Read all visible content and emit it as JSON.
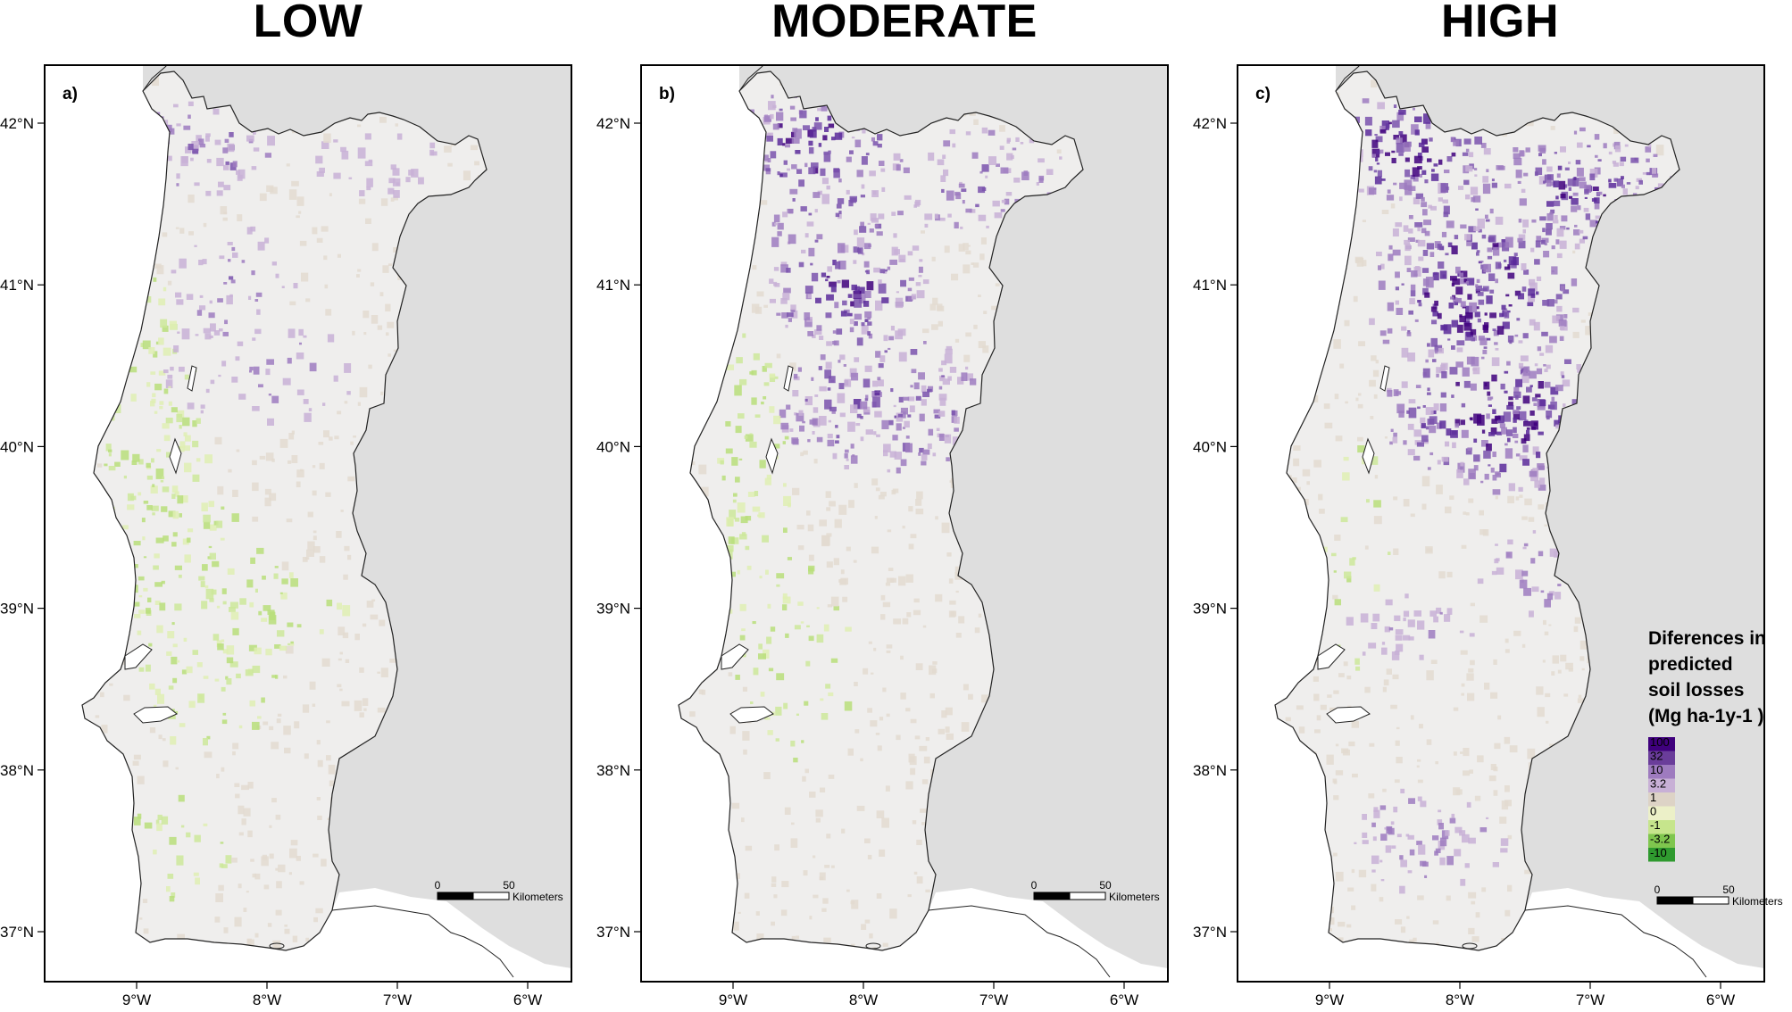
{
  "titles": [
    "LOW",
    "MODERATE",
    "HIGH"
  ],
  "panel_labels": [
    "a)",
    "b)",
    "c)"
  ],
  "lat_ticks": [
    "42°N",
    "41°N",
    "40°N",
    "39°N",
    "38°N",
    "37°N"
  ],
  "lon_ticks": [
    "9°W",
    "8°W",
    "7°W",
    "6°W"
  ],
  "scale_bar": {
    "start": "0",
    "end": "50",
    "unit": "Kilometers"
  },
  "legend": {
    "title_lines": [
      "Diferences in",
      "predicted",
      "soil losses"
    ],
    "unit_line": "(Mg ha-1y-1 )",
    "values": [
      "100",
      "32",
      "10",
      "3.2",
      "1",
      "0",
      "-1",
      "-3.2",
      "-10"
    ],
    "colors": [
      "#3f007d",
      "#6a3d9a",
      "#9e7bbf",
      "#c8b0d6",
      "#ddd3c6",
      "#ecf0c8",
      "#c6e58c",
      "#7fc64e",
      "#2f9a2f"
    ]
  },
  "colors": {
    "sea": "#dedede",
    "land": "#efeeed",
    "purple": "#5a2a9a",
    "green": "#c9e39a"
  }
}
